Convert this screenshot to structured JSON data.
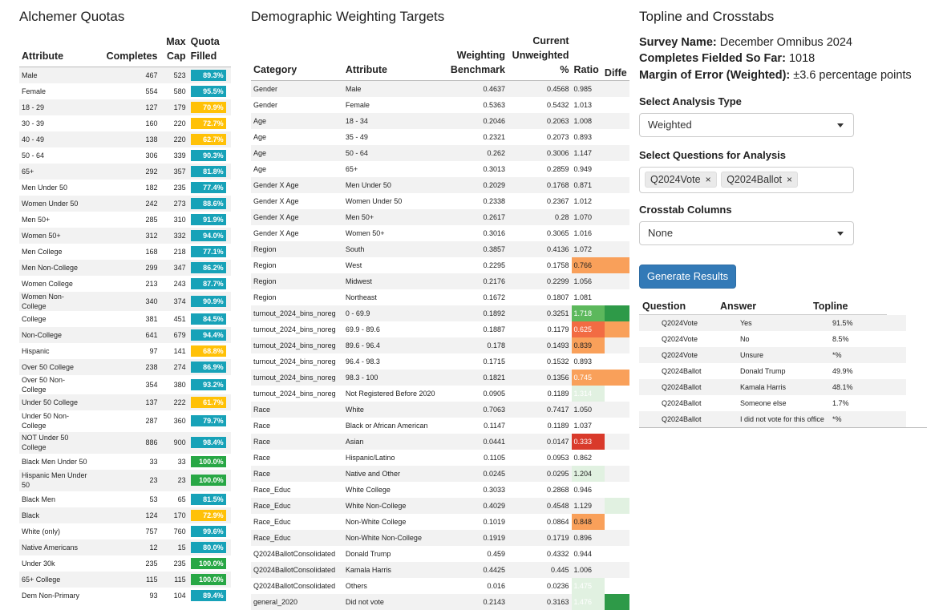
{
  "quotas": {
    "title": "Alchemer Quotas",
    "headers": {
      "attribute": "Attribute",
      "completes": "Completes",
      "maxcap1": "Max",
      "maxcap2": "Cap",
      "quota1": "Quota",
      "quota2": "Filled"
    },
    "rows": [
      {
        "attr": "Male",
        "completes": "467",
        "max": "523",
        "filled": "89.3%",
        "color": "#17a2b8"
      },
      {
        "attr": "Female",
        "completes": "554",
        "max": "580",
        "filled": "95.5%",
        "color": "#17a2b8"
      },
      {
        "attr": "18 - 29",
        "completes": "127",
        "max": "179",
        "filled": "70.9%",
        "color": "#ffc107"
      },
      {
        "attr": "30 - 39",
        "completes": "160",
        "max": "220",
        "filled": "72.7%",
        "color": "#ffc107"
      },
      {
        "attr": "40 - 49",
        "completes": "138",
        "max": "220",
        "filled": "62.7%",
        "color": "#ffc107"
      },
      {
        "attr": "50 - 64",
        "completes": "306",
        "max": "339",
        "filled": "90.3%",
        "color": "#17a2b8"
      },
      {
        "attr": "65+",
        "completes": "292",
        "max": "357",
        "filled": "81.8%",
        "color": "#17a2b8"
      },
      {
        "attr": "Men Under 50",
        "completes": "182",
        "max": "235",
        "filled": "77.4%",
        "color": "#17a2b8"
      },
      {
        "attr": "Women Under 50",
        "completes": "242",
        "max": "273",
        "filled": "88.6%",
        "color": "#17a2b8"
      },
      {
        "attr": "Men 50+",
        "completes": "285",
        "max": "310",
        "filled": "91.9%",
        "color": "#17a2b8"
      },
      {
        "attr": "Women 50+",
        "completes": "312",
        "max": "332",
        "filled": "94.0%",
        "color": "#17a2b8"
      },
      {
        "attr": "Men College",
        "completes": "168",
        "max": "218",
        "filled": "77.1%",
        "color": "#17a2b8"
      },
      {
        "attr": "Men Non-College",
        "completes": "299",
        "max": "347",
        "filled": "86.2%",
        "color": "#17a2b8"
      },
      {
        "attr": "Women College",
        "completes": "213",
        "max": "243",
        "filled": "87.7%",
        "color": "#17a2b8"
      },
      {
        "attr": "Women Non-College",
        "completes": "340",
        "max": "374",
        "filled": "90.9%",
        "color": "#17a2b8"
      },
      {
        "attr": "College",
        "completes": "381",
        "max": "451",
        "filled": "84.5%",
        "color": "#17a2b8"
      },
      {
        "attr": "Non-College",
        "completes": "641",
        "max": "679",
        "filled": "94.4%",
        "color": "#17a2b8"
      },
      {
        "attr": "Hispanic",
        "completes": "97",
        "max": "141",
        "filled": "68.8%",
        "color": "#ffc107"
      },
      {
        "attr": "Over 50 College",
        "completes": "238",
        "max": "274",
        "filled": "86.9%",
        "color": "#17a2b8"
      },
      {
        "attr": "Over 50 Non-College",
        "completes": "354",
        "max": "380",
        "filled": "93.2%",
        "color": "#17a2b8"
      },
      {
        "attr": "Under 50 College",
        "completes": "137",
        "max": "222",
        "filled": "61.7%",
        "color": "#ffc107"
      },
      {
        "attr": "Under 50 Non-College",
        "completes": "287",
        "max": "360",
        "filled": "79.7%",
        "color": "#17a2b8",
        "tall": true
      },
      {
        "attr": "NOT Under 50 College",
        "completes": "886",
        "max": "900",
        "filled": "98.4%",
        "color": "#17a2b8",
        "tall": true
      },
      {
        "attr": "Black Men Under 50",
        "completes": "33",
        "max": "33",
        "filled": "100.0%",
        "color": "#28a745"
      },
      {
        "attr": "Hispanic Men Under 50",
        "completes": "23",
        "max": "23",
        "filled": "100.0%",
        "color": "#28a745",
        "tall": true
      },
      {
        "attr": "Black Men",
        "completes": "53",
        "max": "65",
        "filled": "81.5%",
        "color": "#17a2b8"
      },
      {
        "attr": "Black",
        "completes": "124",
        "max": "170",
        "filled": "72.9%",
        "color": "#ffc107"
      },
      {
        "attr": "White (only)",
        "completes": "757",
        "max": "760",
        "filled": "99.6%",
        "color": "#17a2b8"
      },
      {
        "attr": "Native Americans",
        "completes": "12",
        "max": "15",
        "filled": "80.0%",
        "color": "#17a2b8"
      },
      {
        "attr": "Under 30k",
        "completes": "235",
        "max": "235",
        "filled": "100.0%",
        "color": "#28a745"
      },
      {
        "attr": "65+ College",
        "completes": "115",
        "max": "115",
        "filled": "100.0%",
        "color": "#28a745"
      },
      {
        "attr": "Dem Non-Primary",
        "completes": "93",
        "max": "104",
        "filled": "89.4%",
        "color": "#17a2b8"
      }
    ]
  },
  "weights": {
    "title": "Demographic Weighting Targets",
    "headers": {
      "category": "Category",
      "attribute": "Attribute",
      "bench1": "Weighting",
      "bench2": "Benchmark",
      "unw1": "Current",
      "unw2": "Unweighted",
      "unw3": "%",
      "ratio": "Ratio",
      "diff": "Diffe"
    },
    "rows": [
      {
        "cat": "Gender",
        "attr": "Male",
        "bench": "0.4637",
        "unw": "0.4568",
        "ratio": "0.985",
        "rbg": "",
        "dbg": ""
      },
      {
        "cat": "Gender",
        "attr": "Female",
        "bench": "0.5363",
        "unw": "0.5432",
        "ratio": "1.013",
        "rbg": "",
        "dbg": ""
      },
      {
        "cat": "Age",
        "attr": "18 - 34",
        "bench": "0.2046",
        "unw": "0.2063",
        "ratio": "1.008",
        "rbg": "",
        "dbg": ""
      },
      {
        "cat": "Age",
        "attr": "35 - 49",
        "bench": "0.2321",
        "unw": "0.2073",
        "ratio": "0.893",
        "rbg": "",
        "dbg": ""
      },
      {
        "cat": "Age",
        "attr": "50 - 64",
        "bench": "0.262",
        "unw": "0.3006",
        "ratio": "1.147",
        "rbg": "",
        "dbg": ""
      },
      {
        "cat": "Age",
        "attr": "65+",
        "bench": "0.3013",
        "unw": "0.2859",
        "ratio": "0.949",
        "rbg": "",
        "dbg": ""
      },
      {
        "cat": "Gender X Age",
        "attr": "Men Under 50",
        "bench": "0.2029",
        "unw": "0.1768",
        "ratio": "0.871",
        "rbg": "",
        "dbg": ""
      },
      {
        "cat": "Gender X Age",
        "attr": "Women Under 50",
        "bench": "0.2338",
        "unw": "0.2367",
        "ratio": "1.012",
        "rbg": "",
        "dbg": ""
      },
      {
        "cat": "Gender X Age",
        "attr": "Men 50+",
        "bench": "0.2617",
        "unw": "0.28",
        "ratio": "1.070",
        "rbg": "",
        "dbg": ""
      },
      {
        "cat": "Gender X Age",
        "attr": "Women 50+",
        "bench": "0.3016",
        "unw": "0.3065",
        "ratio": "1.016",
        "rbg": "",
        "dbg": ""
      },
      {
        "cat": "Region",
        "attr": "South",
        "bench": "0.3857",
        "unw": "0.4136",
        "ratio": "1.072",
        "rbg": "",
        "dbg": ""
      },
      {
        "cat": "Region",
        "attr": "West",
        "bench": "0.2295",
        "unw": "0.1758",
        "ratio": "0.766",
        "rbg": "#f9a05a",
        "dbg": "#f9a05a"
      },
      {
        "cat": "Region",
        "attr": "Midwest",
        "bench": "0.2176",
        "unw": "0.2299",
        "ratio": "1.056",
        "rbg": "",
        "dbg": ""
      },
      {
        "cat": "Region",
        "attr": "Northeast",
        "bench": "0.1672",
        "unw": "0.1807",
        "ratio": "1.081",
        "rbg": "",
        "dbg": ""
      },
      {
        "cat": "turnout_2024_bins_noreg",
        "attr": "0 - 69.9",
        "bench": "0.1892",
        "unw": "0.3251",
        "ratio": "1.718",
        "rbg": "#5cb85c",
        "dbg": "#2e9a48",
        "rfg": "#fff"
      },
      {
        "cat": "turnout_2024_bins_noreg",
        "attr": "69.9 - 89.6",
        "bench": "0.1887",
        "unw": "0.1179",
        "ratio": "0.625",
        "rbg": "#f26b43",
        "dbg": "#f9a05a",
        "rfg": "#fff"
      },
      {
        "cat": "turnout_2024_bins_noreg",
        "attr": "89.6 - 96.4",
        "bench": "0.178",
        "unw": "0.1493",
        "ratio": "0.839",
        "rbg": "#f9a05a",
        "dbg": "",
        "rfg": ""
      },
      {
        "cat": "turnout_2024_bins_noreg",
        "attr": "96.4 - 98.3",
        "bench": "0.1715",
        "unw": "0.1532",
        "ratio": "0.893",
        "rbg": "",
        "dbg": ""
      },
      {
        "cat": "turnout_2024_bins_noreg",
        "attr": "98.3 - 100",
        "bench": "0.1821",
        "unw": "0.1356",
        "ratio": "0.745",
        "rbg": "#f9a05a",
        "dbg": "#f9a05a",
        "rfg": "#fff"
      },
      {
        "cat": "turnout_2024_bins_noreg",
        "attr": "Not Registered Before 2020",
        "bench": "0.0905",
        "unw": "0.1189",
        "ratio": "1.314",
        "rbg": "#e1f1e1",
        "dbg": "",
        "rfg": "#fff"
      },
      {
        "cat": "Race",
        "attr": "White",
        "bench": "0.7063",
        "unw": "0.7417",
        "ratio": "1.050",
        "rbg": "",
        "dbg": ""
      },
      {
        "cat": "Race",
        "attr": "Black or African American",
        "bench": "0.1147",
        "unw": "0.1189",
        "ratio": "1.037",
        "rbg": "",
        "dbg": ""
      },
      {
        "cat": "Race",
        "attr": "Asian",
        "bench": "0.0441",
        "unw": "0.0147",
        "ratio": "0.333",
        "rbg": "#d93a2b",
        "dbg": "",
        "rfg": "#fff"
      },
      {
        "cat": "Race",
        "attr": "Hispanic/Latino",
        "bench": "0.1105",
        "unw": "0.0953",
        "ratio": "0.862",
        "rbg": "",
        "dbg": ""
      },
      {
        "cat": "Race",
        "attr": "Native and Other",
        "bench": "0.0245",
        "unw": "0.0295",
        "ratio": "1.204",
        "rbg": "#e1f1e1",
        "dbg": ""
      },
      {
        "cat": "Race_Educ",
        "attr": "White College",
        "bench": "0.3033",
        "unw": "0.2868",
        "ratio": "0.946",
        "rbg": "",
        "dbg": ""
      },
      {
        "cat": "Race_Educ",
        "attr": "White Non-College",
        "bench": "0.4029",
        "unw": "0.4548",
        "ratio": "1.129",
        "rbg": "",
        "dbg": "#e1f1e1"
      },
      {
        "cat": "Race_Educ",
        "attr": "Non-White College",
        "bench": "0.1019",
        "unw": "0.0864",
        "ratio": "0.848",
        "rbg": "#f9a05a",
        "dbg": ""
      },
      {
        "cat": "Race_Educ",
        "attr": "Non-White Non-College",
        "bench": "0.1919",
        "unw": "0.1719",
        "ratio": "0.896",
        "rbg": "",
        "dbg": ""
      },
      {
        "cat": "Q2024BallotConsolidated",
        "attr": "Donald Trump",
        "bench": "0.459",
        "unw": "0.4332",
        "ratio": "0.944",
        "rbg": "",
        "dbg": ""
      },
      {
        "cat": "Q2024BallotConsolidated",
        "attr": "Kamala Harris",
        "bench": "0.4425",
        "unw": "0.445",
        "ratio": "1.006",
        "rbg": "",
        "dbg": ""
      },
      {
        "cat": "Q2024BallotConsolidated",
        "attr": "Others",
        "bench": "0.016",
        "unw": "0.0236",
        "ratio": "1.475",
        "rbg": "#e1f1e1",
        "dbg": "",
        "rfg": "#fff"
      },
      {
        "cat": "general_2020",
        "attr": "Did not vote",
        "bench": "0.2143",
        "unw": "0.3163",
        "ratio": "1.476",
        "rbg": "#e1f1e1",
        "dbg": "#2e9a48",
        "rfg": "#fff"
      }
    ]
  },
  "topline": {
    "title": "Topline and Crosstabs",
    "survey_label": "Survey Name:",
    "survey_value": "December Omnibus 2024",
    "completes_label": "Completes Fielded So Far:",
    "completes_value": "1018",
    "moe_label": "Margin of Error (Weighted):",
    "moe_value": "±3.6 percentage points",
    "analysis_label": "Select Analysis Type",
    "analysis_value": "Weighted",
    "questions_label": "Select Questions for Analysis",
    "tags": [
      "Q2024Vote",
      "Q2024Ballot"
    ],
    "tag_remove": "×",
    "crosstab_label": "Crosstab Columns",
    "crosstab_value": "None",
    "generate_label": "Generate Results",
    "table_headers": {
      "question": "Question",
      "answer": "Answer",
      "topline": "Topline"
    },
    "rows": [
      {
        "q": "Q2024Vote",
        "a": "Yes",
        "t": "91.5%"
      },
      {
        "q": "Q2024Vote",
        "a": "No",
        "t": "8.5%"
      },
      {
        "q": "Q2024Vote",
        "a": "Unsure",
        "t": "*%"
      },
      {
        "q": "Q2024Ballot",
        "a": "Donald Trump",
        "t": "49.9%"
      },
      {
        "q": "Q2024Ballot",
        "a": "Kamala Harris",
        "t": "48.1%"
      },
      {
        "q": "Q2024Ballot",
        "a": "Someone else",
        "t": "1.7%"
      },
      {
        "q": "Q2024Ballot",
        "a": "I did not vote for this office",
        "t": "*%"
      }
    ]
  }
}
